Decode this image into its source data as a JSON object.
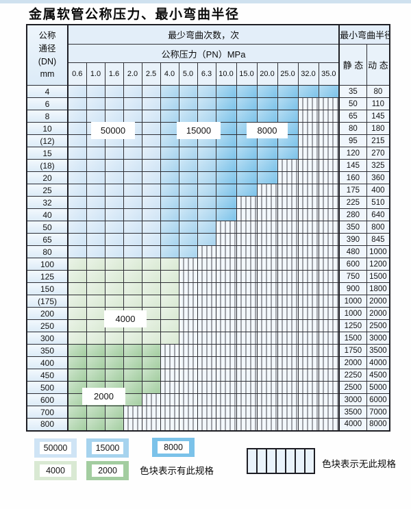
{
  "title": "金属软管公称压力、最小弯曲半径",
  "table": {
    "header": {
      "dn_lines": [
        "公称",
        "通径",
        "(DN)",
        "mm"
      ],
      "bend_cycles": "最少弯曲次数，次",
      "pressure": "公称压力（PN）MPa",
      "radius": "最小弯曲半径",
      "static": "静 态",
      "dynamic": "动 态",
      "pressures": [
        "0.6",
        "1.0",
        "1.6",
        "2.0",
        "2.5",
        "4.0",
        "5.0",
        "6.3",
        "10.0",
        "15.0",
        "20.0",
        "25.0",
        "32.0",
        "35.0"
      ]
    },
    "rows": [
      {
        "dn": "4",
        "colored": 14,
        "palette": "blue",
        "static": "35",
        "dynamic": "80"
      },
      {
        "dn": "6",
        "colored": 12,
        "palette": "blue",
        "static": "50",
        "dynamic": "110"
      },
      {
        "dn": "8",
        "colored": 12,
        "palette": "blue",
        "static": "65",
        "dynamic": "145"
      },
      {
        "dn": "10",
        "colored": 12,
        "palette": "blue",
        "static": "80",
        "dynamic": "180"
      },
      {
        "dn": "(12)",
        "colored": 12,
        "palette": "blue",
        "static": "95",
        "dynamic": "215"
      },
      {
        "dn": "15",
        "colored": 12,
        "palette": "blue",
        "static": "120",
        "dynamic": "270"
      },
      {
        "dn": "(18)",
        "colored": 11,
        "palette": "blue",
        "static": "145",
        "dynamic": "325"
      },
      {
        "dn": "20",
        "colored": 11,
        "palette": "blue",
        "static": "160",
        "dynamic": "360"
      },
      {
        "dn": "25",
        "colored": 10,
        "palette": "blue",
        "static": "175",
        "dynamic": "400"
      },
      {
        "dn": "32",
        "colored": 9,
        "palette": "blue",
        "static": "225",
        "dynamic": "510"
      },
      {
        "dn": "40",
        "colored": 9,
        "palette": "blue",
        "static": "280",
        "dynamic": "640"
      },
      {
        "dn": "50",
        "colored": 8,
        "palette": "blue",
        "static": "350",
        "dynamic": "800"
      },
      {
        "dn": "65",
        "colored": 8,
        "palette": "blue",
        "static": "390",
        "dynamic": "845"
      },
      {
        "dn": "80",
        "colored": 7,
        "palette": "blue",
        "static": "480",
        "dynamic": "1000"
      },
      {
        "dn": "100",
        "colored": 6,
        "palette": "green4000",
        "static": "600",
        "dynamic": "1200"
      },
      {
        "dn": "125",
        "colored": 6,
        "palette": "green4000",
        "static": "750",
        "dynamic": "1500"
      },
      {
        "dn": "150",
        "colored": 6,
        "palette": "green4000",
        "static": "900",
        "dynamic": "1800"
      },
      {
        "dn": "(175)",
        "colored": 6,
        "palette": "green4000",
        "static": "1000",
        "dynamic": "2000"
      },
      {
        "dn": "200",
        "colored": 6,
        "palette": "green4000",
        "static": "1000",
        "dynamic": "2000"
      },
      {
        "dn": "250",
        "colored": 6,
        "palette": "green4000",
        "static": "1250",
        "dynamic": "2500"
      },
      {
        "dn": "300",
        "colored": 6,
        "palette": "green4000",
        "static": "1500",
        "dynamic": "3000"
      },
      {
        "dn": "350",
        "colored": 5,
        "palette": "green2000",
        "static": "1750",
        "dynamic": "3500"
      },
      {
        "dn": "400",
        "colored": 5,
        "palette": "green2000",
        "static": "2000",
        "dynamic": "4000"
      },
      {
        "dn": "450",
        "colored": 5,
        "palette": "green2000",
        "static": "2250",
        "dynamic": "4500"
      },
      {
        "dn": "500",
        "colored": 5,
        "palette": "green2000",
        "static": "2500",
        "dynamic": "5000"
      },
      {
        "dn": "600",
        "colored": 4,
        "palette": "green2000",
        "static": "3000",
        "dynamic": "6000"
      },
      {
        "dn": "700",
        "colored": 3,
        "palette": "green2000",
        "static": "3500",
        "dynamic": "7000"
      },
      {
        "dn": "800",
        "colored": 3,
        "palette": "green2000",
        "static": "4000",
        "dynamic": "8000"
      }
    ]
  },
  "cycle_labels": {
    "l50000": "50000",
    "l15000": "15000",
    "l8000": "8000",
    "l4000": "4000",
    "l2000": "2000"
  },
  "colors": {
    "c50000": "#cfe4f5",
    "c15000": "#a6d3ee",
    "c8000": "#7bc2e9",
    "c4000": "#d9e9d3",
    "c2000": "#a3cda0",
    "accent_strip": "#cfe1ef"
  },
  "legend": {
    "sw50000": "50000",
    "sw15000": "15000",
    "sw8000": "8000",
    "sw4000": "4000",
    "sw2000": "2000",
    "has_spec_text": "色块表示有此规格",
    "no_spec_text": "色块表示无此规格"
  }
}
